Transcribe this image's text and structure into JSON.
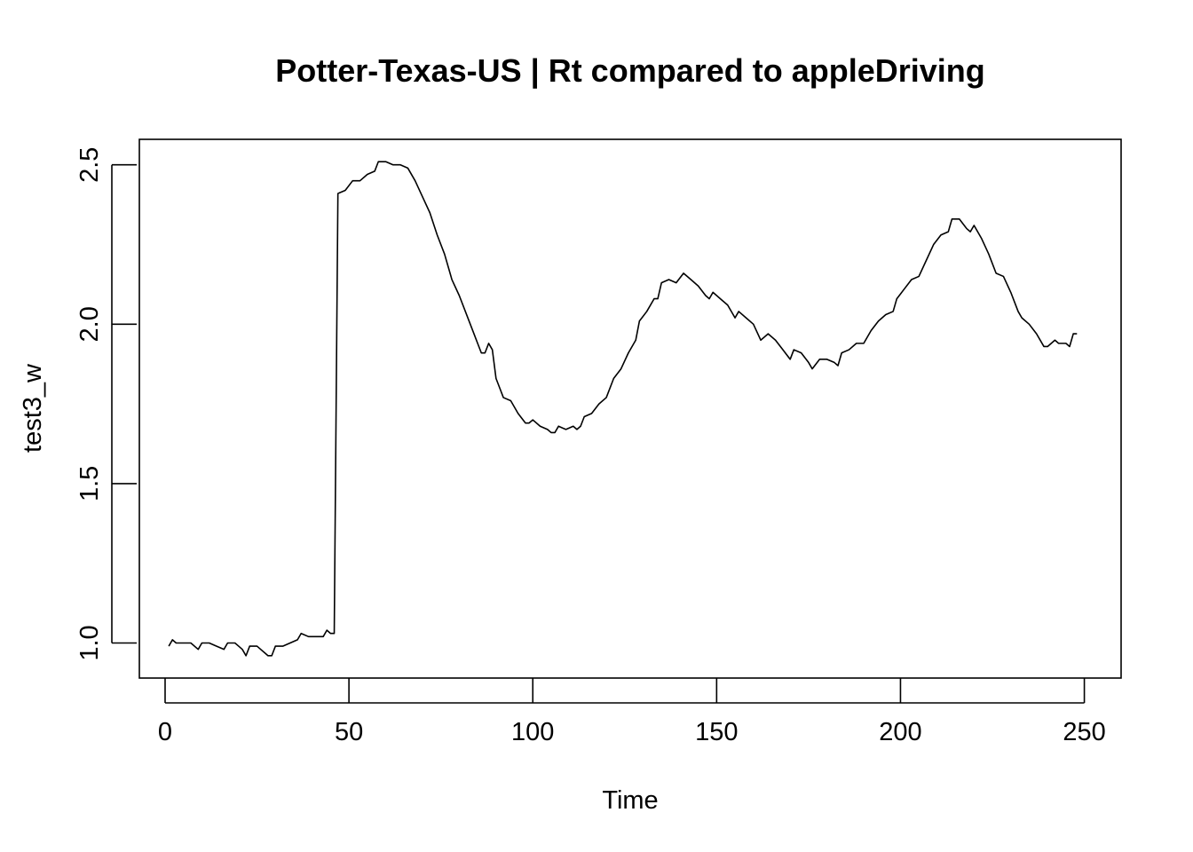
{
  "chart_data": {
    "type": "line",
    "title": "Potter-Texas-US | Rt compared to appleDriving",
    "xlabel": "Time",
    "ylabel": "test3_w",
    "xlim": [
      -7,
      260
    ],
    "ylim": [
      0.89,
      2.58
    ],
    "x_ticks": [
      0,
      50,
      100,
      150,
      200,
      250
    ],
    "y_ticks": [
      1.0,
      1.5,
      2.0,
      2.5
    ],
    "grid": false,
    "series": [
      {
        "points": [
          [
            1,
            0.99
          ],
          [
            2,
            1.01
          ],
          [
            3,
            1.0
          ],
          [
            5,
            1.0
          ],
          [
            7,
            1.0
          ],
          [
            9,
            0.98
          ],
          [
            10,
            1.0
          ],
          [
            12,
            1.0
          ],
          [
            14,
            0.99
          ],
          [
            16,
            0.98
          ],
          [
            17,
            1.0
          ],
          [
            19,
            1.0
          ],
          [
            20,
            0.99
          ],
          [
            21,
            0.98
          ],
          [
            22,
            0.96
          ],
          [
            23,
            0.99
          ],
          [
            25,
            0.99
          ],
          [
            26,
            0.98
          ],
          [
            27,
            0.97
          ],
          [
            28,
            0.96
          ],
          [
            29,
            0.96
          ],
          [
            30,
            0.99
          ],
          [
            32,
            0.99
          ],
          [
            34,
            1.0
          ],
          [
            36,
            1.01
          ],
          [
            37,
            1.03
          ],
          [
            39,
            1.02
          ],
          [
            41,
            1.02
          ],
          [
            43,
            1.02
          ],
          [
            44,
            1.04
          ],
          [
            45,
            1.03
          ],
          [
            46,
            1.03
          ],
          [
            47,
            2.41
          ],
          [
            49,
            2.42
          ],
          [
            51,
            2.45
          ],
          [
            53,
            2.45
          ],
          [
            55,
            2.47
          ],
          [
            57,
            2.48
          ],
          [
            58,
            2.51
          ],
          [
            60,
            2.51
          ],
          [
            62,
            2.5
          ],
          [
            64,
            2.5
          ],
          [
            66,
            2.49
          ],
          [
            68,
            2.45
          ],
          [
            70,
            2.4
          ],
          [
            72,
            2.35
          ],
          [
            74,
            2.28
          ],
          [
            76,
            2.22
          ],
          [
            78,
            2.14
          ],
          [
            80,
            2.09
          ],
          [
            82,
            2.03
          ],
          [
            84,
            1.97
          ],
          [
            85,
            1.94
          ],
          [
            86,
            1.91
          ],
          [
            87,
            1.91
          ],
          [
            88,
            1.94
          ],
          [
            89,
            1.92
          ],
          [
            90,
            1.83
          ],
          [
            91,
            1.8
          ],
          [
            92,
            1.77
          ],
          [
            94,
            1.76
          ],
          [
            96,
            1.72
          ],
          [
            98,
            1.69
          ],
          [
            99,
            1.69
          ],
          [
            100,
            1.7
          ],
          [
            102,
            1.68
          ],
          [
            104,
            1.67
          ],
          [
            105,
            1.66
          ],
          [
            106,
            1.66
          ],
          [
            107,
            1.68
          ],
          [
            109,
            1.67
          ],
          [
            111,
            1.68
          ],
          [
            112,
            1.67
          ],
          [
            113,
            1.68
          ],
          [
            114,
            1.71
          ],
          [
            116,
            1.72
          ],
          [
            118,
            1.75
          ],
          [
            120,
            1.77
          ],
          [
            122,
            1.83
          ],
          [
            124,
            1.86
          ],
          [
            126,
            1.91
          ],
          [
            128,
            1.95
          ],
          [
            129,
            2.01
          ],
          [
            131,
            2.04
          ],
          [
            133,
            2.08
          ],
          [
            134,
            2.08
          ],
          [
            135,
            2.13
          ],
          [
            137,
            2.14
          ],
          [
            139,
            2.13
          ],
          [
            141,
            2.16
          ],
          [
            143,
            2.14
          ],
          [
            145,
            2.12
          ],
          [
            147,
            2.09
          ],
          [
            148,
            2.08
          ],
          [
            149,
            2.1
          ],
          [
            151,
            2.08
          ],
          [
            153,
            2.06
          ],
          [
            155,
            2.02
          ],
          [
            156,
            2.04
          ],
          [
            158,
            2.02
          ],
          [
            160,
            2.0
          ],
          [
            162,
            1.95
          ],
          [
            164,
            1.97
          ],
          [
            166,
            1.95
          ],
          [
            168,
            1.92
          ],
          [
            170,
            1.89
          ],
          [
            171,
            1.92
          ],
          [
            173,
            1.91
          ],
          [
            175,
            1.88
          ],
          [
            176,
            1.86
          ],
          [
            178,
            1.89
          ],
          [
            180,
            1.89
          ],
          [
            182,
            1.88
          ],
          [
            183,
            1.87
          ],
          [
            184,
            1.91
          ],
          [
            186,
            1.92
          ],
          [
            188,
            1.94
          ],
          [
            190,
            1.94
          ],
          [
            192,
            1.98
          ],
          [
            194,
            2.01
          ],
          [
            196,
            2.03
          ],
          [
            198,
            2.04
          ],
          [
            199,
            2.08
          ],
          [
            201,
            2.11
          ],
          [
            203,
            2.14
          ],
          [
            205,
            2.15
          ],
          [
            207,
            2.2
          ],
          [
            209,
            2.25
          ],
          [
            211,
            2.28
          ],
          [
            213,
            2.29
          ],
          [
            214,
            2.33
          ],
          [
            216,
            2.33
          ],
          [
            218,
            2.3
          ],
          [
            219,
            2.29
          ],
          [
            220,
            2.31
          ],
          [
            222,
            2.27
          ],
          [
            224,
            2.22
          ],
          [
            226,
            2.16
          ],
          [
            228,
            2.15
          ],
          [
            230,
            2.1
          ],
          [
            232,
            2.04
          ],
          [
            233,
            2.02
          ],
          [
            235,
            2.0
          ],
          [
            237,
            1.97
          ],
          [
            239,
            1.93
          ],
          [
            240,
            1.93
          ],
          [
            242,
            1.95
          ],
          [
            243,
            1.94
          ],
          [
            245,
            1.94
          ],
          [
            246,
            1.93
          ],
          [
            247,
            1.97
          ],
          [
            248,
            1.97
          ]
        ]
      }
    ]
  }
}
